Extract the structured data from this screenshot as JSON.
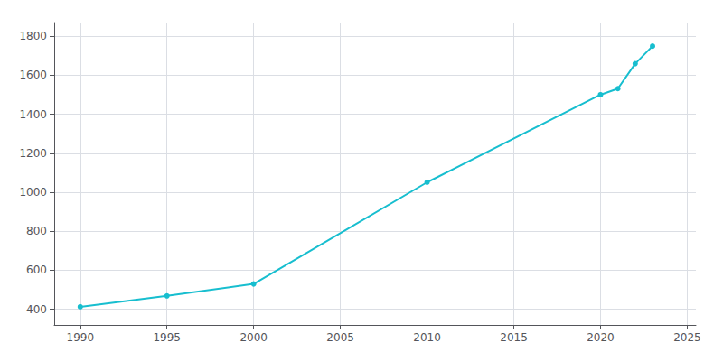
{
  "chart_data": {
    "type": "line",
    "x": [
      1990,
      1995,
      2000,
      2010,
      2020,
      2021,
      2022,
      2023
    ],
    "values": [
      413,
      469,
      530,
      1051,
      1500,
      1531,
      1659,
      1749
    ],
    "color": "#17becf",
    "marker": "circle",
    "xlim": [
      1988.5,
      2025.5
    ],
    "ylim": [
      320,
      1870
    ],
    "xticks": [
      1990,
      1995,
      2000,
      2005,
      2010,
      2015,
      2020,
      2025
    ],
    "yticks": [
      400,
      600,
      800,
      1000,
      1200,
      1400,
      1600,
      1800
    ],
    "grid": true
  }
}
